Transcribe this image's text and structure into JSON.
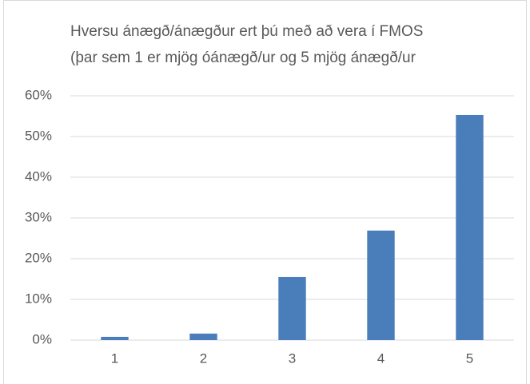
{
  "chart_data": {
    "type": "bar",
    "title": [
      "Hversu ánægð/ánægður ert þú með að vera í FMOS",
      "(þar sem 1 er mjög óánægð/ur og 5 mjög ánægð/ur"
    ],
    "categories": [
      "1",
      "2",
      "3",
      "4",
      "5"
    ],
    "values": [
      0.8,
      1.6,
      15.5,
      26.9,
      55.3
    ],
    "color": "#4a7ebb",
    "ylim": [
      0,
      60
    ],
    "yticks": [
      {
        "value": 0,
        "label": "0%"
      },
      {
        "value": 10,
        "label": "10%"
      },
      {
        "value": 20,
        "label": "20%"
      },
      {
        "value": 30,
        "label": "30%"
      },
      {
        "value": 40,
        "label": "40%"
      },
      {
        "value": 50,
        "label": "50%"
      },
      {
        "value": 60,
        "label": "60%"
      }
    ],
    "grid": true
  }
}
